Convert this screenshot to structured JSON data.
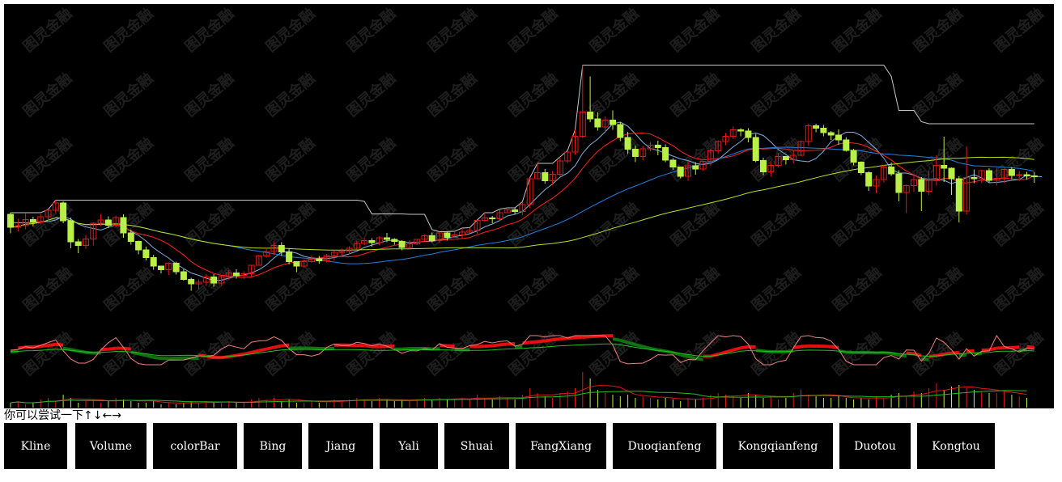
{
  "hint": {
    "text": "你可以尝试一下↑↓←→"
  },
  "buttons": [
    {
      "label": "Kline"
    },
    {
      "label": "Volume"
    },
    {
      "label": "colorBar"
    },
    {
      "label": "Bing"
    },
    {
      "label": "Jiang"
    },
    {
      "label": "Yali"
    },
    {
      "label": "Shuai"
    },
    {
      "label": "FangXiang"
    },
    {
      "label": "Duoqianfeng"
    },
    {
      "label": "Kongqianfeng"
    },
    {
      "label": "Duotou"
    },
    {
      "label": "Kongtou"
    }
  ],
  "watermark": {
    "text": "图灵金融"
  },
  "colors": {
    "background": "#000000",
    "up_candle": "#e01818",
    "down_candle": "#b8f048",
    "ma_short": "#7fb0e0",
    "ma_mid": "#ff2020",
    "ma_long": "#2080e0",
    "ma_longer": "#b8e020",
    "pressure_line": "#c8c8c8",
    "osc_pink": "#f08080",
    "osc_green": "#20c020",
    "fill_red": "#ff1010",
    "fill_green": "#108010"
  },
  "chart_data": {
    "type": "candlestick",
    "candles": [
      [
        50.0,
        46.8,
        50.4,
        45.3
      ],
      [
        46.8,
        47.2,
        48.9,
        45.8
      ],
      [
        47.2,
        48.7,
        50.2,
        46.3
      ],
      [
        48.7,
        48.1,
        49.4,
        47.0
      ],
      [
        48.1,
        49.4,
        50.0,
        47.6
      ],
      [
        49.4,
        51.0,
        51.2,
        48.4
      ],
      [
        51.0,
        52.8,
        53.5,
        50.3
      ],
      [
        52.8,
        48.4,
        53.2,
        47.8
      ],
      [
        48.4,
        43.2,
        49.2,
        41.6
      ],
      [
        43.2,
        42.3,
        43.9,
        40.4
      ],
      [
        42.3,
        43.9,
        44.9,
        41.5
      ],
      [
        43.9,
        47.8,
        48.0,
        42.3
      ],
      [
        47.8,
        48.6,
        50.1,
        47.1
      ],
      [
        48.6,
        47.3,
        49.5,
        46.6
      ],
      [
        47.3,
        49.2,
        49.7,
        46.8
      ],
      [
        49.2,
        45.4,
        50.0,
        44.2
      ],
      [
        45.4,
        43.3,
        46.2,
        42.5
      ],
      [
        43.3,
        41.2,
        43.5,
        40.1
      ],
      [
        41.2,
        39.3,
        42.0,
        38.6
      ],
      [
        39.3,
        37.2,
        40.0,
        36.3
      ],
      [
        37.2,
        36.3,
        37.3,
        35.4
      ],
      [
        36.3,
        37.9,
        38.1,
        35.0
      ],
      [
        37.9,
        35.8,
        38.3,
        35.1
      ],
      [
        35.8,
        33.9,
        36.4,
        33.6
      ],
      [
        33.9,
        32.8,
        34.3,
        31.1
      ],
      [
        32.8,
        33.2,
        33.9,
        31.5
      ],
      [
        33.2,
        34.5,
        35.2,
        32.3
      ],
      [
        34.5,
        33.0,
        35.2,
        32.1
      ],
      [
        33.0,
        34.6,
        34.8,
        32.4
      ],
      [
        34.6,
        35.5,
        36.2,
        33.9
      ],
      [
        35.5,
        34.9,
        36.4,
        34.1
      ],
      [
        34.9,
        35.3,
        35.9,
        34.0
      ],
      [
        35.3,
        37.4,
        37.5,
        34.6
      ],
      [
        37.4,
        39.7,
        40.0,
        37.3
      ],
      [
        39.7,
        40.8,
        41.9,
        39.3
      ],
      [
        40.8,
        42.3,
        43.1,
        40.0
      ],
      [
        42.3,
        40.7,
        43.1,
        39.7
      ],
      [
        40.7,
        38.3,
        41.6,
        37.6
      ],
      [
        38.3,
        37.2,
        38.4,
        35.7
      ],
      [
        37.2,
        38.3,
        38.8,
        36.7
      ],
      [
        38.3,
        39.0,
        39.8,
        38.0
      ],
      [
        39.0,
        38.5,
        39.7,
        37.8
      ],
      [
        38.5,
        39.8,
        40.2,
        38.1
      ],
      [
        39.8,
        40.6,
        41.1,
        38.6
      ],
      [
        40.6,
        40.8,
        41.5,
        39.5
      ],
      [
        40.8,
        41.6,
        42.1,
        40.1
      ],
      [
        41.6,
        42.8,
        43.4,
        41.4
      ],
      [
        42.8,
        43.5,
        44.2,
        42.4
      ],
      [
        43.5,
        43.0,
        44.1,
        42.0
      ],
      [
        43.0,
        44.2,
        44.6,
        42.3
      ],
      [
        44.2,
        43.8,
        45.4,
        43.1
      ],
      [
        43.8,
        43.3,
        44.1,
        42.5
      ],
      [
        43.3,
        41.8,
        43.6,
        41.1
      ],
      [
        41.8,
        42.7,
        43.6,
        41.6
      ],
      [
        42.7,
        43.8,
        43.9,
        42.4
      ],
      [
        43.8,
        44.7,
        45.0,
        43.4
      ],
      [
        44.7,
        43.5,
        45.5,
        43.1
      ],
      [
        43.5,
        45.4,
        45.7,
        42.9
      ],
      [
        45.4,
        44.3,
        45.7,
        43.5
      ],
      [
        44.3,
        44.9,
        45.8,
        44.2
      ],
      [
        44.9,
        45.6,
        46.6,
        44.1
      ],
      [
        45.6,
        46.0,
        46.7,
        45.3
      ],
      [
        46.0,
        48.5,
        48.6,
        45.2
      ],
      [
        48.5,
        49.1,
        50.4,
        48.1
      ],
      [
        49.1,
        48.9,
        49.6,
        47.8
      ],
      [
        48.9,
        50.4,
        51.3,
        48.3
      ],
      [
        50.4,
        51.1,
        51.6,
        50.3
      ],
      [
        51.1,
        50.7,
        51.6,
        50.0
      ],
      [
        50.7,
        52.4,
        53.1,
        49.8
      ],
      [
        52.4,
        58.8,
        59.1,
        51.6
      ],
      [
        58.8,
        60.3,
        62.6,
        58.7
      ],
      [
        60.3,
        58.3,
        61.2,
        57.6
      ],
      [
        58.3,
        59.9,
        60.7,
        57.2
      ],
      [
        59.9,
        63.2,
        64.2,
        59.4
      ],
      [
        63.2,
        65.4,
        65.8,
        62.7
      ],
      [
        65.4,
        69.3,
        70.9,
        64.8
      ],
      [
        69.3,
        75.3,
        86.9,
        68.8
      ],
      [
        75.3,
        73.6,
        84.1,
        72.8
      ],
      [
        73.6,
        71.6,
        75.2,
        70.7
      ],
      [
        71.6,
        73.3,
        74.2,
        70.4
      ],
      [
        73.3,
        72.2,
        75.7,
        70.9
      ],
      [
        72.2,
        69.0,
        72.9,
        68.1
      ],
      [
        69.0,
        66.1,
        70.4,
        64.9
      ],
      [
        66.1,
        64.3,
        67.0,
        62.9
      ],
      [
        64.3,
        66.2,
        66.9,
        63.3
      ],
      [
        66.2,
        67.1,
        67.9,
        65.6
      ],
      [
        67.1,
        66.5,
        68.2,
        64.6
      ],
      [
        66.5,
        63.4,
        67.3,
        62.9
      ],
      [
        63.4,
        61.7,
        63.9,
        61.0
      ],
      [
        61.7,
        59.4,
        61.8,
        58.9
      ],
      [
        59.4,
        62.0,
        63.3,
        58.3
      ],
      [
        62.0,
        61.2,
        62.9,
        59.8
      ],
      [
        61.2,
        63.1,
        63.2,
        60.8
      ],
      [
        63.1,
        65.7,
        66.2,
        62.0
      ],
      [
        65.7,
        68.0,
        68.3,
        64.9
      ],
      [
        68.0,
        69.3,
        70.1,
        67.1
      ],
      [
        69.3,
        70.9,
        71.7,
        68.6
      ],
      [
        70.9,
        70.6,
        71.3,
        69.3
      ],
      [
        70.6,
        69.0,
        71.3,
        67.8
      ],
      [
        69.0,
        63.3,
        69.9,
        62.9
      ],
      [
        63.3,
        60.5,
        64.0,
        59.7
      ],
      [
        60.5,
        62.1,
        62.9,
        59.3
      ],
      [
        62.1,
        64.3,
        65.2,
        61.6
      ],
      [
        64.3,
        63.5,
        64.4,
        62.3
      ],
      [
        63.5,
        64.6,
        65.9,
        62.6
      ],
      [
        64.6,
        68.0,
        68.2,
        64.4
      ],
      [
        68.0,
        71.9,
        72.4,
        66.9
      ],
      [
        71.9,
        71.3,
        72.4,
        70.3
      ],
      [
        71.3,
        70.2,
        72.1,
        69.3
      ],
      [
        70.2,
        69.6,
        70.6,
        68.4
      ],
      [
        69.6,
        68.4,
        71.0,
        67.2
      ],
      [
        68.4,
        65.8,
        69.1,
        65.5
      ],
      [
        65.8,
        62.9,
        66.2,
        62.1
      ],
      [
        62.9,
        60.3,
        63.1,
        59.7
      ],
      [
        60.3,
        57.0,
        60.6,
        55.8
      ],
      [
        57.0,
        58.6,
        59.6,
        55.2
      ],
      [
        58.6,
        61.7,
        62.3,
        57.9
      ],
      [
        61.7,
        60.0,
        62.8,
        59.5
      ],
      [
        60.0,
        55.4,
        60.9,
        53.2
      ],
      [
        55.4,
        57.1,
        57.4,
        50.3
      ],
      [
        57.1,
        58.6,
        59.6,
        55.6
      ],
      [
        58.6,
        55.7,
        59.2,
        50.8
      ],
      [
        55.7,
        58.3,
        60.9,
        54.8
      ],
      [
        58.3,
        62.1,
        64.6,
        57.1
      ],
      [
        62.1,
        61.4,
        69.2,
        58.0
      ],
      [
        61.4,
        58.8,
        61.6,
        54.8
      ],
      [
        58.8,
        50.8,
        59.4,
        48.0
      ],
      [
        50.8,
        59.1,
        66.8,
        49.9
      ],
      [
        59.1,
        58.8,
        61.1,
        57.7
      ],
      [
        58.8,
        60.8,
        61.0,
        57.7
      ],
      [
        60.8,
        58.4,
        61.4,
        57.9
      ],
      [
        58.4,
        58.9,
        61.5,
        57.1
      ],
      [
        58.9,
        61.1,
        61.3,
        57.8
      ],
      [
        61.1,
        59.6,
        61.7,
        58.7
      ],
      [
        59.6,
        59.8,
        60.7,
        58.2
      ],
      [
        59.8,
        59.5,
        60.5,
        58.6
      ],
      [
        59.5,
        59.4,
        60.4,
        57.8
      ]
    ],
    "ma": {
      "ma_short": [
        48.0,
        47.9,
        47.9,
        48.0,
        48.2,
        48.2,
        48.6,
        49.5,
        48.8,
        47.6,
        46.9,
        46.5,
        46.1,
        46.8,
        47.4,
        47.0,
        45.8,
        44.8,
        43.4,
        41.7,
        40.4,
        39.2,
        37.7,
        36.6,
        35.5,
        34.9,
        34.2,
        33.7,
        33.7,
        34.2,
        34.7,
        35.0,
        35.5,
        36.3,
        37.5,
        39.2,
        40.6,
        40.8,
        40.4,
        39.6,
        39.2,
        39.1,
        39.0,
        39.3,
        39.7,
        40.2,
        40.9,
        41.8,
        42.4,
        42.9,
        43.5,
        43.6,
        43.3,
        43.0,
        43.1,
        43.3,
        43.3,
        43.7,
        44.0,
        44.5,
        44.8,
        45.2,
        45.9,
        46.9,
        47.6,
        48.5,
        49.6,
        50.0,
        50.7,
        52.4,
        54.3,
        56.1,
        57.5,
        59.2,
        60.2,
        62.0,
        65.1,
        67.2,
        68.6,
        70.4,
        72.4,
        72.8,
        71.8,
        69.9,
        67.8,
        66.3,
        65.8,
        65.1,
        64.4,
        63.7,
        63.3,
        62.6,
        62.3,
        62.6,
        63.5,
        65.1,
        66.7,
        68.0,
        69.7,
        70.1,
        69.5,
        67.9,
        66.0,
        64.8,
        63.5,
        63.2,
        63.0,
        63.8,
        65.6,
        68.0,
        69.3,
        70.3,
        70.3,
        69.5,
        67.8,
        66.1,
        63.9,
        61.2,
        60.2,
        60.2,
        59.7,
        58.9,
        58.7,
        58.8,
        58.4,
        57.6,
        58.2,
        59.1,
        59.8,
        59.0,
        57.8,
        57.9,
        58.1,
        58.4,
        58.6,
        59.7,
        59.4,
        59.3
      ]
    },
    "volume": [
      3,
      4,
      2,
      3,
      5,
      6,
      4,
      8,
      6,
      3,
      4,
      5,
      3,
      4,
      6,
      5,
      4,
      3,
      3,
      4,
      2,
      3,
      2,
      3,
      4,
      3,
      4,
      3,
      3,
      4,
      3,
      3,
      5,
      6,
      5,
      6,
      4,
      5,
      3,
      3,
      4,
      3,
      4,
      5,
      4,
      5,
      6,
      5,
      4,
      6,
      5,
      4,
      5,
      4,
      5,
      6,
      5,
      6,
      5,
      5,
      6,
      5,
      8,
      6,
      5,
      7,
      6,
      5,
      8,
      12,
      9,
      7,
      6,
      9,
      10,
      12,
      22,
      18,
      11,
      9,
      8,
      7,
      8,
      6,
      7,
      6,
      5,
      6,
      5,
      4,
      6,
      5,
      6,
      8,
      9,
      8,
      7,
      6,
      9,
      8,
      6,
      7,
      5,
      6,
      9,
      11,
      8,
      7,
      6,
      6,
      7,
      6,
      5,
      6,
      5,
      7,
      6,
      8,
      9,
      7,
      10,
      9,
      12,
      15,
      11,
      13,
      14,
      12,
      11,
      10,
      9,
      9,
      10,
      8,
      7,
      6
    ]
  }
}
